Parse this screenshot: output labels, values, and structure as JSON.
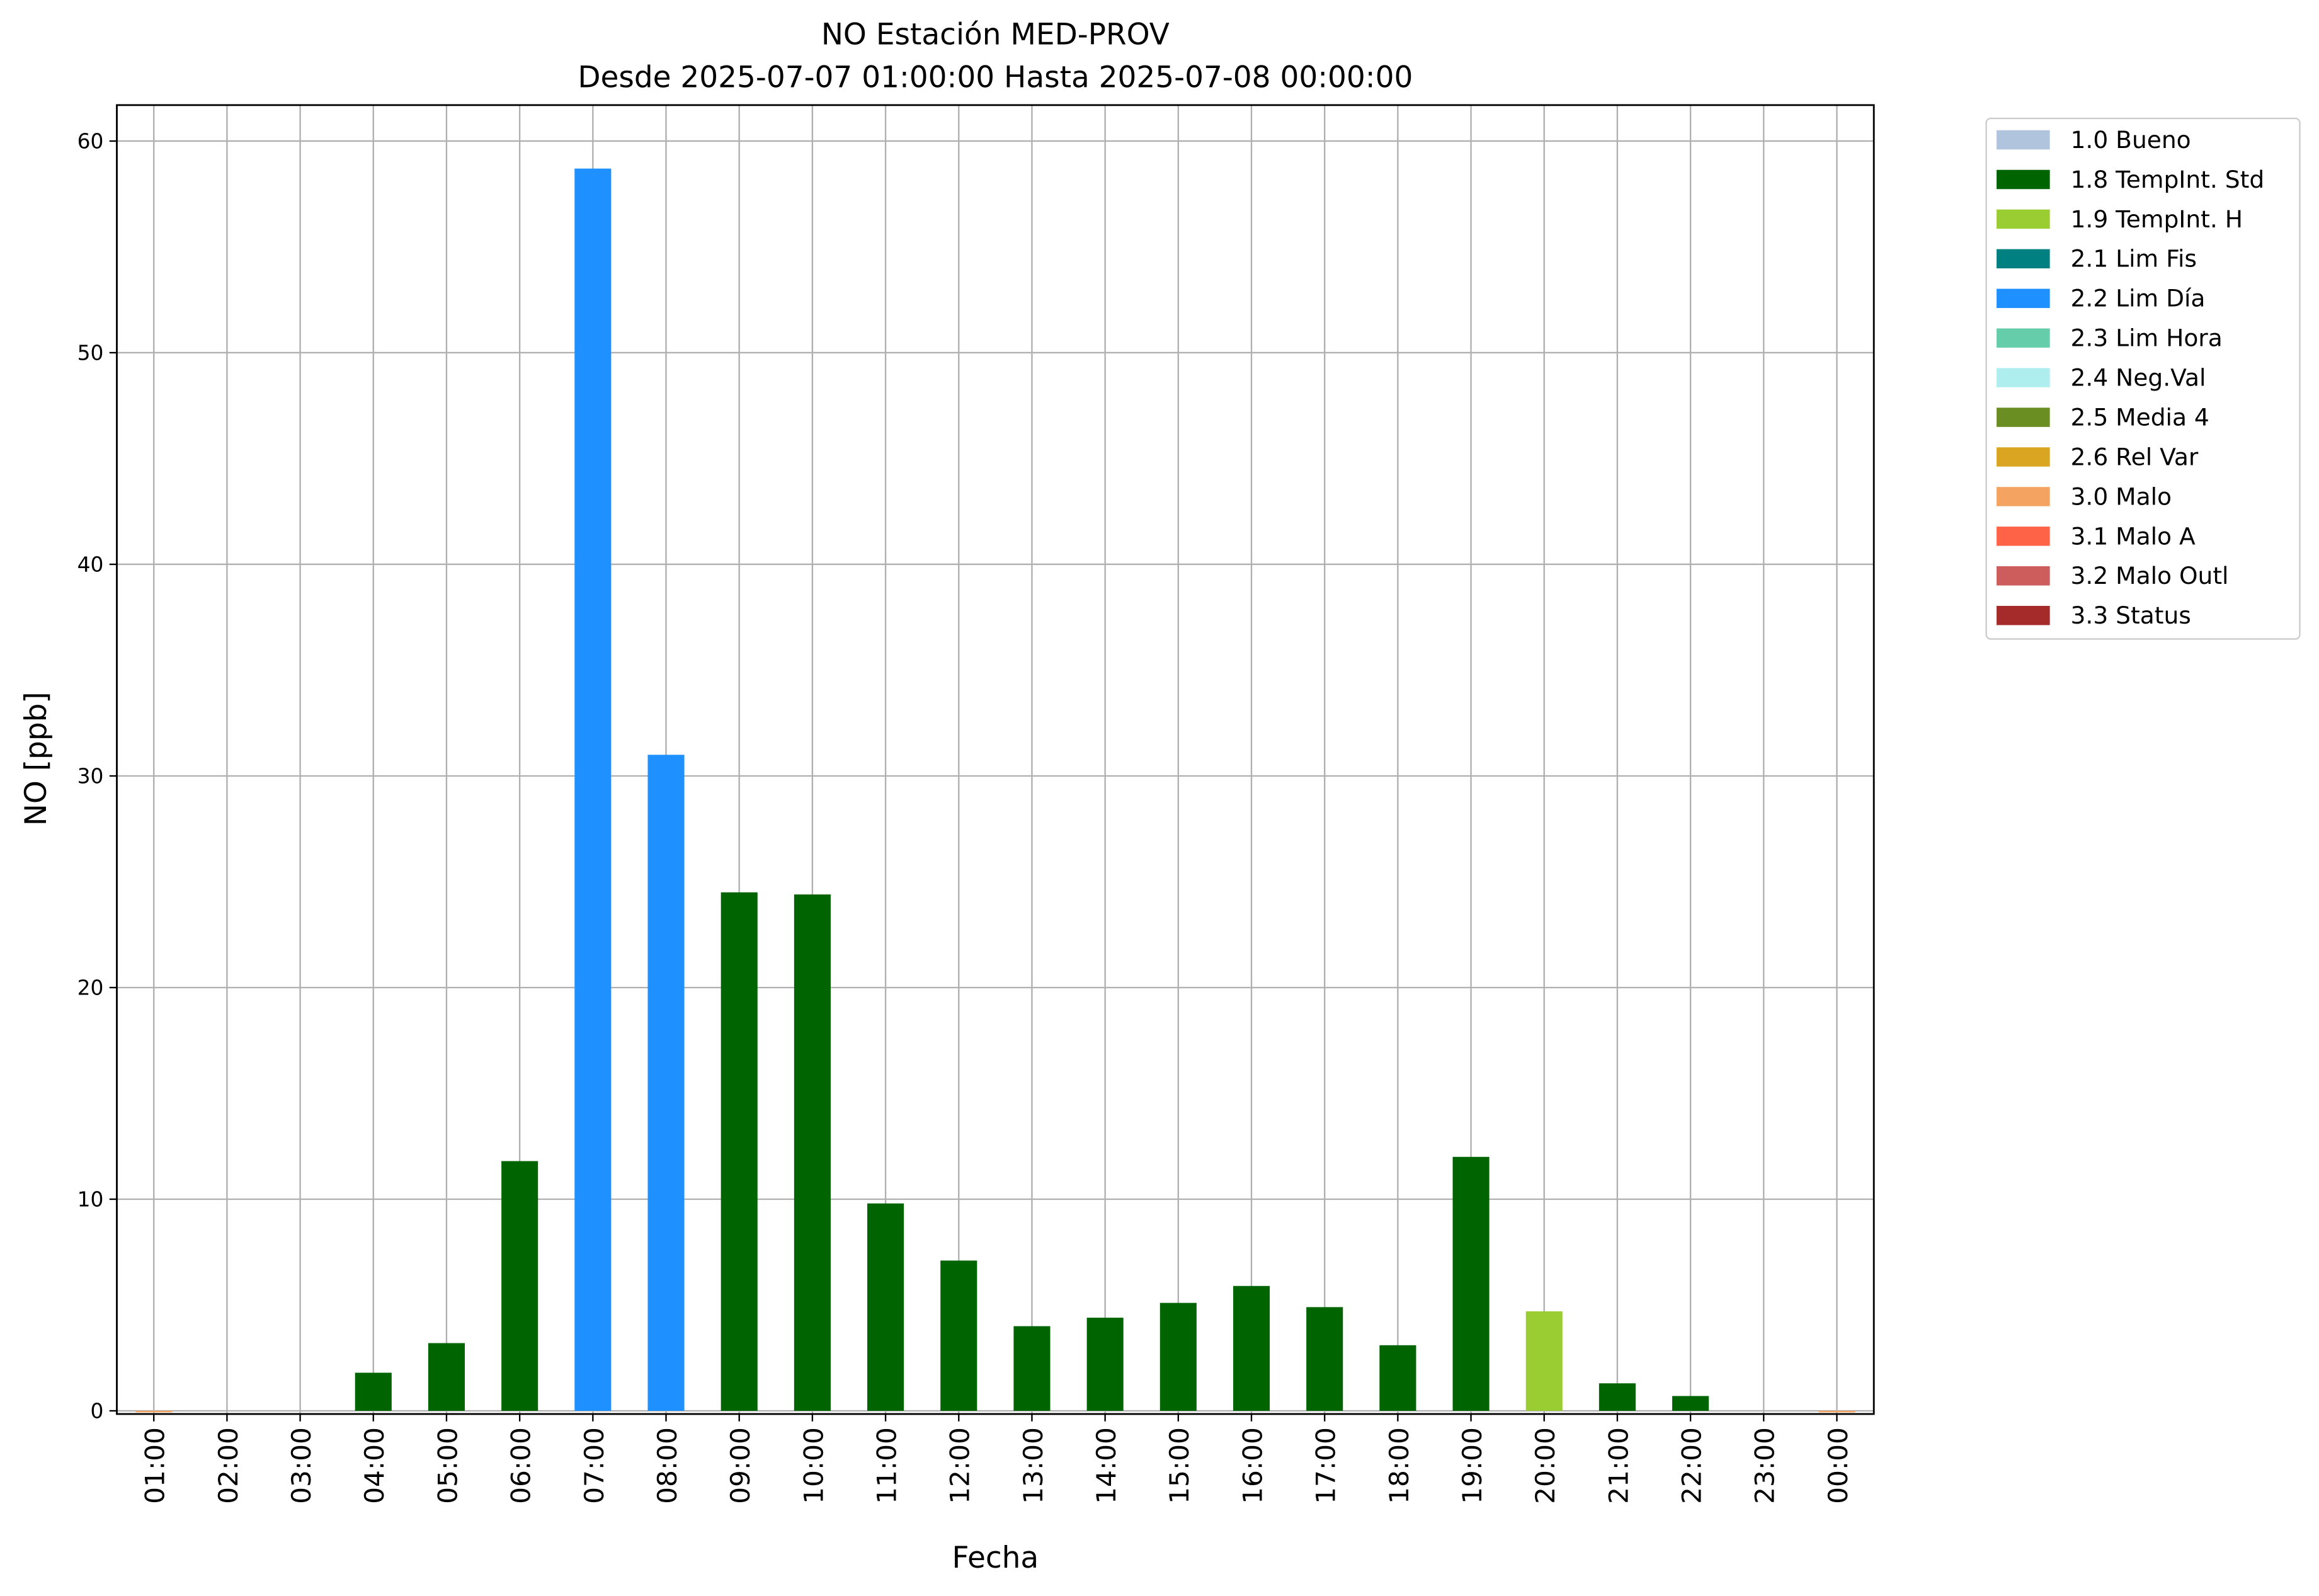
{
  "chart_data": {
    "type": "bar",
    "title": "NO Estación MED-PROV",
    "subtitle": "Desde 2025-07-07 01:00:00 Hasta 2025-07-08 00:00:00",
    "x_label": "Fecha",
    "y_label": "NO [ppb]",
    "categories": [
      "01:00",
      "02:00",
      "03:00",
      "04:00",
      "05:00",
      "06:00",
      "07:00",
      "08:00",
      "09:00",
      "10:00",
      "11:00",
      "12:00",
      "13:00",
      "14:00",
      "15:00",
      "16:00",
      "17:00",
      "18:00",
      "19:00",
      "20:00",
      "21:00",
      "22:00",
      "23:00",
      "00:00"
    ],
    "values": [
      0,
      null,
      null,
      1.8,
      3.2,
      11.8,
      58.7,
      31.0,
      24.5,
      24.4,
      9.8,
      7.1,
      4.0,
      4.4,
      5.1,
      5.9,
      4.9,
      3.1,
      12.0,
      4.7,
      1.3,
      0.7,
      null,
      0
    ],
    "colors": [
      "#f4a460",
      "#006400",
      "#006400",
      "#006400",
      "#006400",
      "#006400",
      "#1e90ff",
      "#1e90ff",
      "#006400",
      "#006400",
      "#006400",
      "#006400",
      "#006400",
      "#006400",
      "#006400",
      "#006400",
      "#006400",
      "#006400",
      "#006400",
      "#9acd32",
      "#006400",
      "#006400",
      "#006400",
      "#f4a460"
    ],
    "ylim": [
      -0.15,
      61.7
    ],
    "yticks": [
      0,
      10,
      20,
      30,
      40,
      50,
      60
    ],
    "grid": true,
    "legend_position": "outside-upper-right",
    "legend": [
      {
        "name": "1.0 Bueno",
        "color": "#b0c4de"
      },
      {
        "name": "1.8 TempInt. Std",
        "color": "#006400"
      },
      {
        "name": "1.9 TempInt. H",
        "color": "#9acd32"
      },
      {
        "name": "2.1 Lim Fis",
        "color": "#008080"
      },
      {
        "name": "2.2 Lim Día",
        "color": "#1e90ff"
      },
      {
        "name": "2.3 Lim Hora",
        "color": "#66cdaa"
      },
      {
        "name": "2.4 Neg.Val",
        "color": "#afeeee"
      },
      {
        "name": "2.5 Media 4",
        "color": "#6b8e23"
      },
      {
        "name": "2.6 Rel Var",
        "color": "#daa520"
      },
      {
        "name": "3.0 Malo",
        "color": "#f4a460"
      },
      {
        "name": "3.1 Malo A",
        "color": "#ff6347"
      },
      {
        "name": "3.2 Malo Outl",
        "color": "#cd5c5c"
      },
      {
        "name": "3.3 Status",
        "color": "#a52a2a"
      }
    ]
  }
}
